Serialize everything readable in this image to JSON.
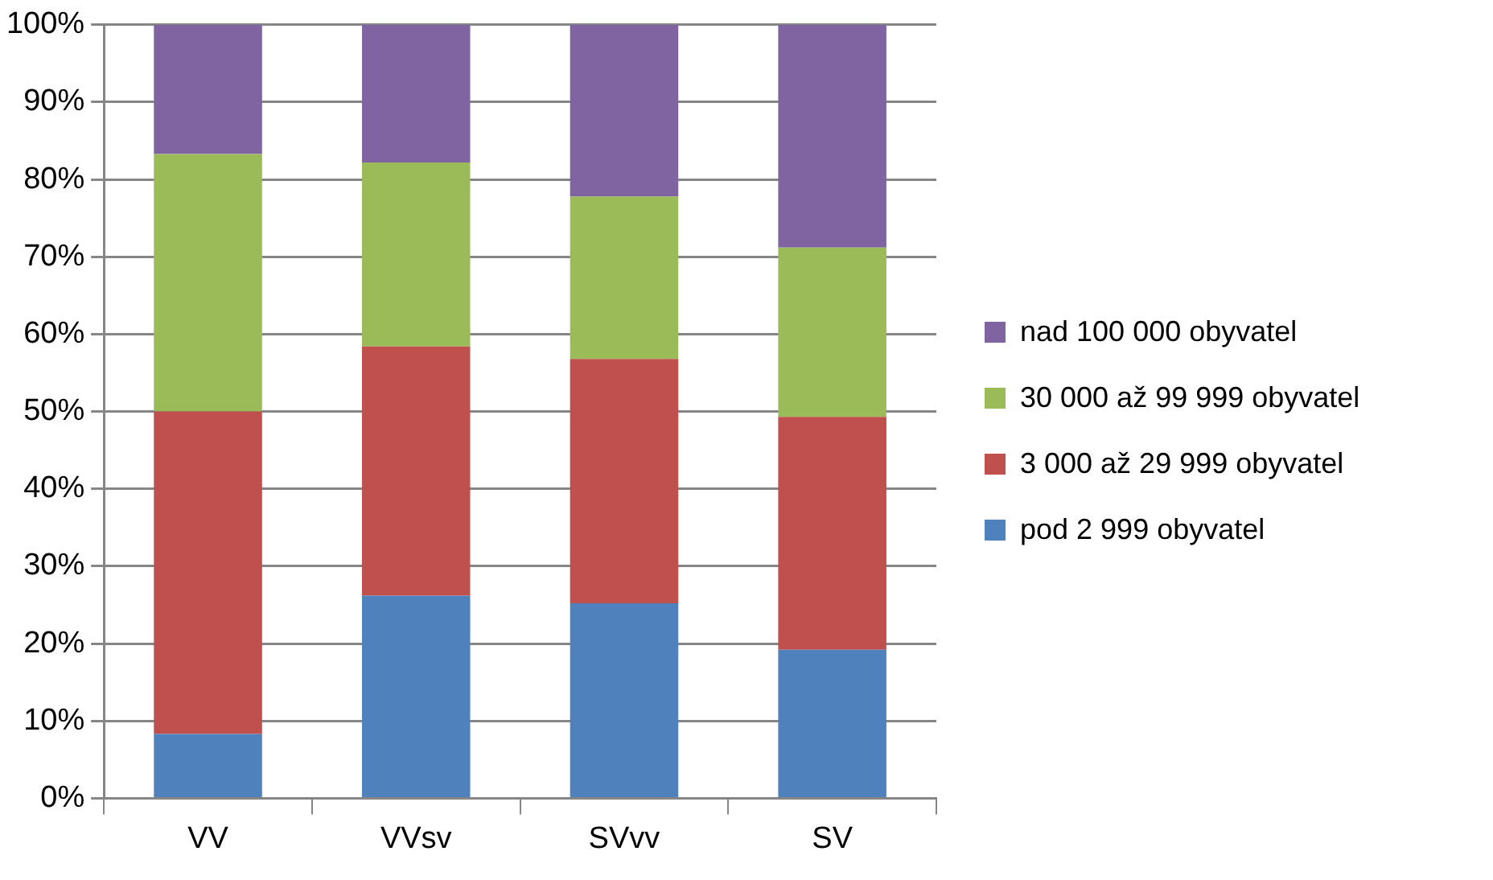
{
  "chart_data": {
    "type": "bar",
    "stacked": true,
    "categories": [
      "VV",
      "VVsv",
      "SVvv",
      "SV"
    ],
    "series": [
      {
        "name": "pod 2 999 obyvatel",
        "color": "#4f81bd",
        "values": [
          8.3,
          26.2,
          25.2,
          19.2
        ]
      },
      {
        "name": "3 000 až 29 999 obyvatel",
        "color": "#c0504d",
        "values": [
          41.7,
          32.2,
          31.6,
          30.1
        ]
      },
      {
        "name": "30 000 až 99 999 obyvatel",
        "color": "#9bbb59",
        "values": [
          33.3,
          23.8,
          21.0,
          21.9
        ]
      },
      {
        "name": "nad 100 000 obyvatel",
        "color": "#8064a2",
        "values": [
          16.7,
          17.8,
          22.2,
          28.8
        ]
      }
    ],
    "ylim": [
      0,
      100
    ],
    "yticks": [
      {
        "value": 0,
        "label": "0%"
      },
      {
        "value": 10,
        "label": "10%"
      },
      {
        "value": 20,
        "label": "20%"
      },
      {
        "value": 30,
        "label": "30%"
      },
      {
        "value": 40,
        "label": "40%"
      },
      {
        "value": 50,
        "label": "50%"
      },
      {
        "value": 60,
        "label": "60%"
      },
      {
        "value": 70,
        "label": "70%"
      },
      {
        "value": 80,
        "label": "80%"
      },
      {
        "value": 90,
        "label": "90%"
      },
      {
        "value": 100,
        "label": "100%"
      }
    ],
    "grid": "y",
    "legend": "right"
  }
}
